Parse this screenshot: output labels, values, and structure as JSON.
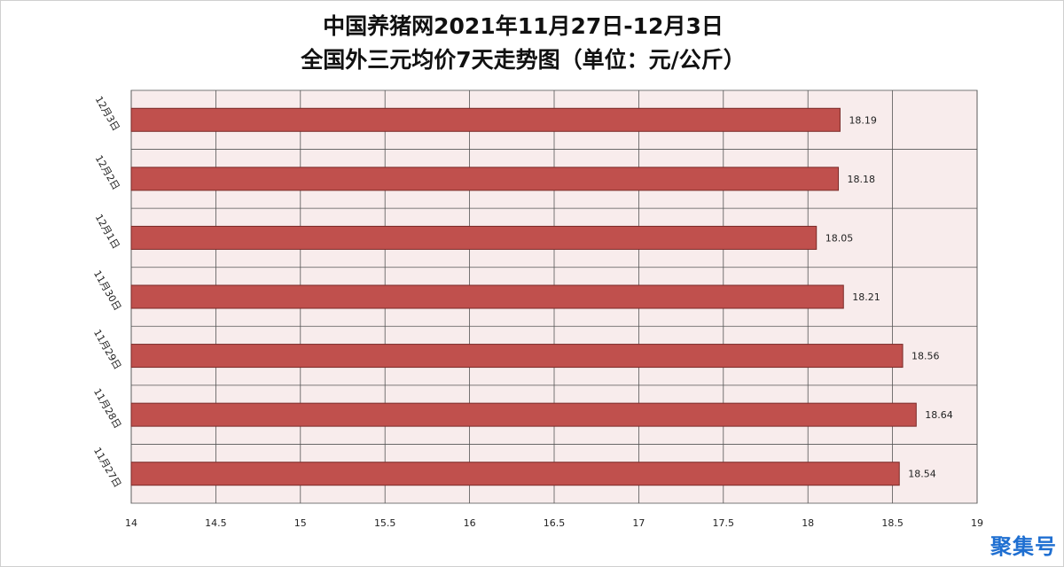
{
  "chart_data": {
    "type": "bar",
    "orientation": "horizontal",
    "title": "中国养猪网2021年11月27日-12月3日",
    "subtitle": "全国外三元均价7天走势图（单位：元/公斤）",
    "categories": [
      "12月3日",
      "12月2日",
      "12月1日",
      "11月30日",
      "11月29日",
      "11月28日",
      "11月27日"
    ],
    "values": [
      18.19,
      18.18,
      18.05,
      18.21,
      18.56,
      18.64,
      18.54
    ],
    "value_labels": [
      "18.19",
      "18.18",
      "18.05",
      "18.21",
      "18.56",
      "18.64",
      "18.54"
    ],
    "xlim": [
      14,
      19
    ],
    "xticks": [
      "14",
      "14.5",
      "15",
      "15.5",
      "16",
      "16.5",
      "17",
      "17.5",
      "18",
      "18.5",
      "19"
    ],
    "xlabel": "",
    "ylabel": "",
    "grid": true,
    "legend": "none",
    "colors": {
      "bar": "#c0504d",
      "bar_edge": "#7a2a28",
      "plot_bg": "#f8ecec",
      "grid": "#555555"
    }
  },
  "watermark": "聚集号"
}
